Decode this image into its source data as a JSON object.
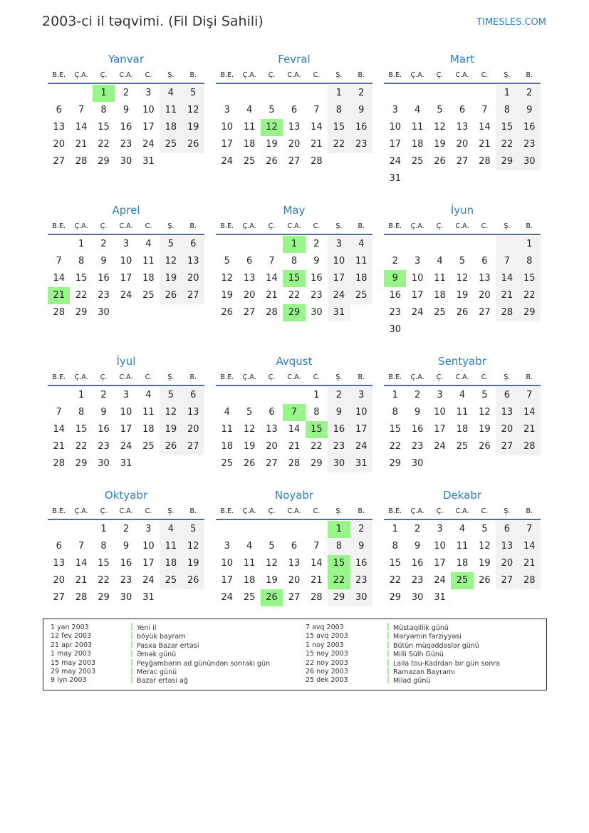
{
  "title": "2003-ci il təqvimi. (Fil Dişi Sahili)",
  "brand": "TIMESLES.COM",
  "colors": {
    "accent": "#2f7fc1",
    "holiday": "#98f58a",
    "weekend": "#f2f2f2"
  },
  "weekdays": [
    "B.E.",
    "Ç.A.",
    "Ç.",
    "C.A.",
    "C.",
    "Ş.",
    "B."
  ],
  "months": [
    {
      "name": "Yanvar",
      "start_weekday": 3,
      "days": 31,
      "holidays": [
        1
      ]
    },
    {
      "name": "Fevral",
      "start_weekday": 6,
      "days": 28,
      "holidays": [
        12
      ]
    },
    {
      "name": "Mart",
      "start_weekday": 6,
      "days": 31,
      "holidays": []
    },
    {
      "name": "Aprel",
      "start_weekday": 2,
      "days": 30,
      "holidays": [
        21
      ]
    },
    {
      "name": "May",
      "start_weekday": 4,
      "days": 31,
      "holidays": [
        1,
        15,
        29
      ]
    },
    {
      "name": "İyun",
      "start_weekday": 7,
      "days": 30,
      "holidays": [
        9
      ]
    },
    {
      "name": "İyul",
      "start_weekday": 2,
      "days": 31,
      "holidays": []
    },
    {
      "name": "Avqust",
      "start_weekday": 5,
      "days": 31,
      "holidays": [
        7,
        15
      ]
    },
    {
      "name": "Sentyabr",
      "start_weekday": 1,
      "days": 30,
      "holidays": []
    },
    {
      "name": "Oktyabr",
      "start_weekday": 3,
      "days": 31,
      "holidays": []
    },
    {
      "name": "Noyabr",
      "start_weekday": 6,
      "days": 30,
      "holidays": [
        1,
        15,
        22,
        26
      ]
    },
    {
      "name": "Dekabr",
      "start_weekday": 1,
      "days": 31,
      "holidays": [
        25
      ]
    }
  ],
  "legend": [
    {
      "date": "1 yan 2003",
      "name": "Yeni il"
    },
    {
      "date": "12 fev 2003",
      "name": "böyük bayram"
    },
    {
      "date": "21 apr 2003",
      "name": "Pasxa Bazar ertəsi"
    },
    {
      "date": "1 may 2003",
      "name": "Əmək günü"
    },
    {
      "date": "15 may 2003",
      "name": "Peyğəmbərin ad günündən sonrakı gün"
    },
    {
      "date": "29 may 2003",
      "name": "Merac günü"
    },
    {
      "date": "9 iyn 2003",
      "name": "Bazar ertəsi ağ"
    },
    {
      "date": "7 avq 2003",
      "name": "Müstəqillik günü"
    },
    {
      "date": "15 avq 2003",
      "name": "Məryəmin fərziyyəsi"
    },
    {
      "date": "1 noy 2003",
      "name": "Bütün müqəddəslər günü"
    },
    {
      "date": "15 noy 2003",
      "name": "Milli Sülh Günü"
    },
    {
      "date": "22 noy 2003",
      "name": "Laila tou-Kadrdan bir gün sonra"
    },
    {
      "date": "26 noy 2003",
      "name": "Ramazan Bayramı"
    },
    {
      "date": "25 dek 2003",
      "name": "Milad günü"
    }
  ]
}
